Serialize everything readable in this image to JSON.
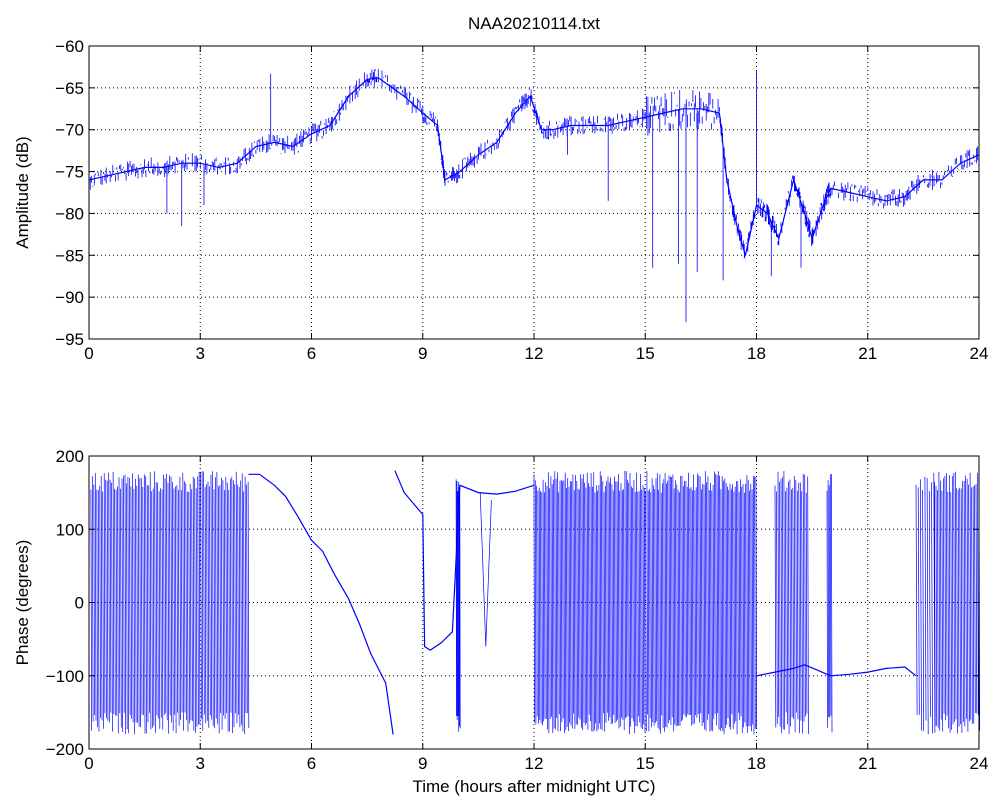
{
  "title": "NAA20210114.txt",
  "colors": {
    "series": "#0000ff",
    "axes": "#000000",
    "grid": "#000000",
    "background": "#ffffff"
  },
  "chart_data": [
    {
      "type": "line",
      "ylabel": "Amplitude (dB)",
      "xlabel": "",
      "xlim": [
        0,
        24
      ],
      "ylim": [
        -95,
        -60
      ],
      "xticks": [
        0,
        3,
        6,
        9,
        12,
        15,
        18,
        21,
        24
      ],
      "yticks": [
        -95,
        -90,
        -85,
        -80,
        -75,
        -70,
        -65,
        -60
      ],
      "grid": true,
      "series": [
        {
          "x": [
            0,
            0.5,
            1,
            1.5,
            2,
            2.5,
            3,
            3.5,
            4,
            4.5,
            5,
            5.5,
            6,
            6.5,
            7,
            7.5,
            7.8,
            8.5,
            9,
            9.4,
            9.6,
            10,
            10.5,
            11,
            11.5,
            11.9,
            12.2,
            12.5,
            13,
            13.5,
            14,
            14.5,
            15,
            15.5,
            16,
            16.5,
            17,
            17.2,
            17.5,
            17.7,
            18,
            18.3,
            18.6,
            19,
            19.3,
            19.5,
            19.8,
            20,
            20.5,
            21,
            21.5,
            22,
            22.5,
            23,
            23.5,
            24
          ],
          "y": [
            -76,
            -75.5,
            -75,
            -74.5,
            -74.5,
            -74,
            -74,
            -74.5,
            -74,
            -72,
            -71.5,
            -72,
            -70.5,
            -69.5,
            -66,
            -64,
            -63.8,
            -66,
            -68,
            -69.5,
            -76,
            -75,
            -73,
            -71.5,
            -68,
            -66,
            -70,
            -70,
            -69.5,
            -69.5,
            -69.5,
            -69,
            -68.5,
            -68,
            -67.5,
            -67.5,
            -68,
            -76,
            -82,
            -85,
            -79,
            -80,
            -83,
            -76,
            -80,
            -83,
            -79,
            -77,
            -77.5,
            -78,
            -78.5,
            -78,
            -76,
            -76,
            -74,
            -73
          ]
        }
      ]
    },
    {
      "type": "line",
      "ylabel": "Phase (degrees)",
      "xlabel": "Time (hours after midnight UTC)",
      "xlim": [
        0,
        24
      ],
      "ylim": [
        -200,
        200
      ],
      "xticks": [
        0,
        3,
        6,
        9,
        12,
        15,
        18,
        21,
        24
      ],
      "yticks": [
        -200,
        -100,
        0,
        100,
        200
      ],
      "grid": true,
      "series": [
        {
          "x": [
            4.3,
            4.6,
            5,
            5.3,
            5.6,
            6,
            6.3,
            6.6,
            7,
            7.3,
            7.6,
            8,
            8.2,
            8.25,
            8.5,
            9,
            9.05,
            9.2,
            9.5,
            9.8,
            10,
            10.5,
            11,
            11.5,
            12,
            18,
            18.5,
            19,
            19.3,
            20,
            20.5,
            21,
            21.5,
            22,
            22.3
          ],
          "y": [
            175,
            175,
            160,
            145,
            120,
            85,
            70,
            40,
            5,
            -30,
            -70,
            -110,
            -180,
            180,
            150,
            120,
            -60,
            -65,
            -55,
            -40,
            160,
            150,
            148,
            152,
            160,
            -100,
            -95,
            -90,
            -85,
            -100,
            -98,
            -95,
            -90,
            -88,
            -100
          ]
        }
      ]
    }
  ]
}
